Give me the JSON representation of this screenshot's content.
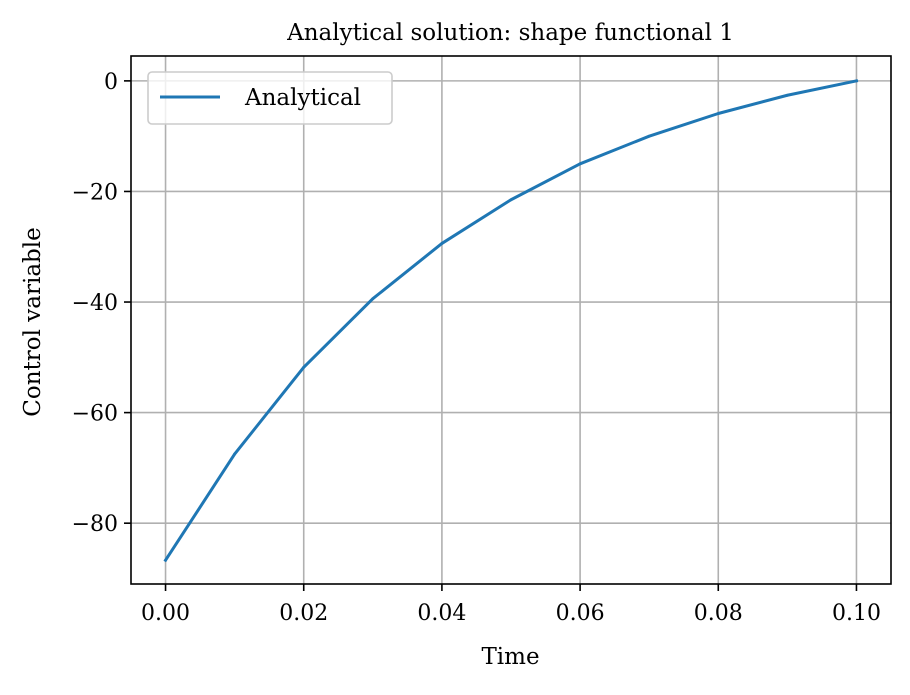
{
  "chart_data": {
    "type": "line",
    "title": "Analytical solution: shape functional 1",
    "xlabel": "Time",
    "ylabel": "Control variable",
    "xlim": [
      -0.005,
      0.105
    ],
    "ylim": [
      -91,
      4.5
    ],
    "xticks": [
      0.0,
      0.02,
      0.04,
      0.06,
      0.08,
      0.1
    ],
    "xtick_labels": [
      "0.00",
      "0.02",
      "0.04",
      "0.06",
      "0.08",
      "0.10"
    ],
    "yticks": [
      0,
      -20,
      -40,
      -60,
      -80
    ],
    "ytick_labels": [
      "0",
      "−20",
      "−40",
      "−60",
      "−80"
    ],
    "grid": true,
    "legend": {
      "placement": "upper-left",
      "entries": [
        "Analytical"
      ]
    },
    "series": [
      {
        "name": "Analytical",
        "color": "#1f77b4",
        "x": [
          0.0,
          0.01,
          0.02,
          0.03,
          0.04,
          0.05,
          0.06,
          0.07,
          0.08,
          0.09,
          0.1
        ],
        "y": [
          -86.7,
          -67.5,
          -51.8,
          -39.4,
          -29.4,
          -21.5,
          -15.0,
          -10.0,
          -5.9,
          -2.6,
          0.0
        ]
      }
    ]
  }
}
